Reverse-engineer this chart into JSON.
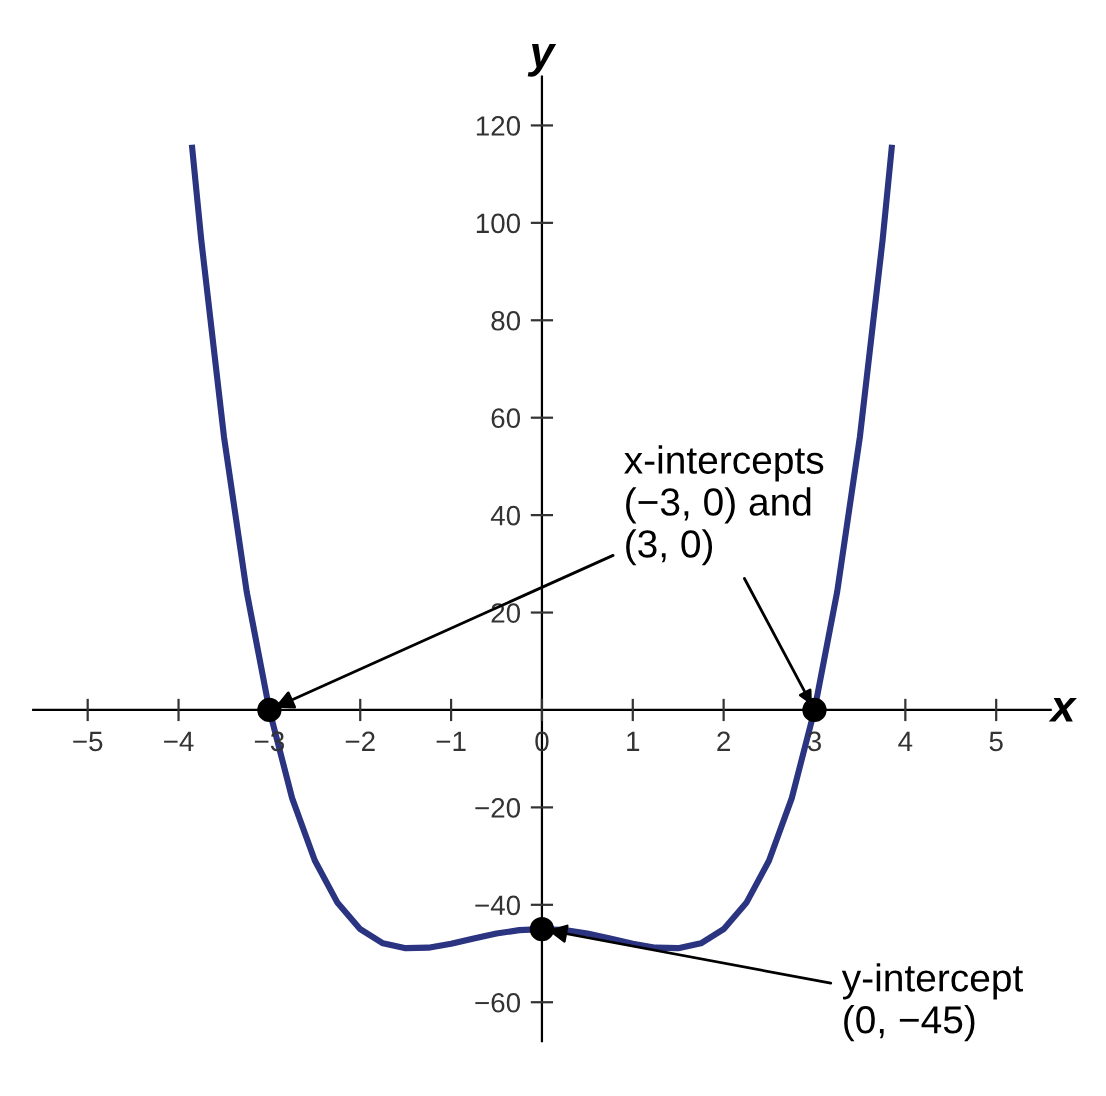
{
  "chart_data": {
    "type": "line",
    "xlabel": "x",
    "ylabel": "y",
    "grid": false,
    "legend": false,
    "xlim": [
      -5.6,
      5.6
    ],
    "ylim": [
      -68,
      130
    ],
    "xticks": [
      {
        "value": -5,
        "label": "−5"
      },
      {
        "value": -4,
        "label": "−4"
      },
      {
        "value": -3,
        "label": "−3"
      },
      {
        "value": -2,
        "label": "−2"
      },
      {
        "value": -1,
        "label": "−1"
      },
      0,
      1,
      2,
      3,
      4,
      5
    ],
    "yticks": [
      {
        "value": -60,
        "label": "−60"
      },
      {
        "value": -40,
        "label": "−40"
      },
      {
        "value": -20,
        "label": "−20"
      },
      20,
      40,
      60,
      80,
      100,
      120
    ],
    "series": [
      {
        "color": "#2b3480",
        "marker": "none",
        "x": [
          -3.85,
          -3.75,
          -3.5,
          -3.25,
          -3,
          -2.75,
          -2.5,
          -2.25,
          -2,
          -1.75,
          -1.5,
          -1.25,
          -1,
          -0.75,
          -0.5,
          -0.25,
          0,
          0.25,
          0.5,
          0.75,
          1,
          1.25,
          1.5,
          1.75,
          2,
          2.25,
          2.5,
          2.75,
          3,
          3.25,
          3.5,
          3.75,
          3.85
        ],
        "values": [
          115.4,
          96.5,
          56.1,
          24.3,
          0,
          -18.1,
          -30.9,
          -39.6,
          -45,
          -47.9,
          -48.9,
          -48.8,
          -48,
          -46.9,
          -45.9,
          -45.2,
          -45,
          -45.2,
          -45.9,
          -46.9,
          -48,
          -48.8,
          -48.9,
          -47.9,
          -45,
          -39.6,
          -30.9,
          -18.1,
          0,
          24.3,
          56.1,
          96.5,
          115.4
        ]
      },
      {
        "type": "scatter",
        "color": "#000000",
        "marker": "circle",
        "x": [
          -3,
          3,
          0
        ],
        "values": [
          0,
          0,
          -45
        ]
      }
    ],
    "annotations": [
      {
        "text": "x-intercepts\n(−3, 0) and\n(3, 0)",
        "x": -3,
        "y": 0
      },
      {
        "text": "y-intercept\n(0, −45)",
        "x": 0,
        "y": -45
      }
    ]
  }
}
